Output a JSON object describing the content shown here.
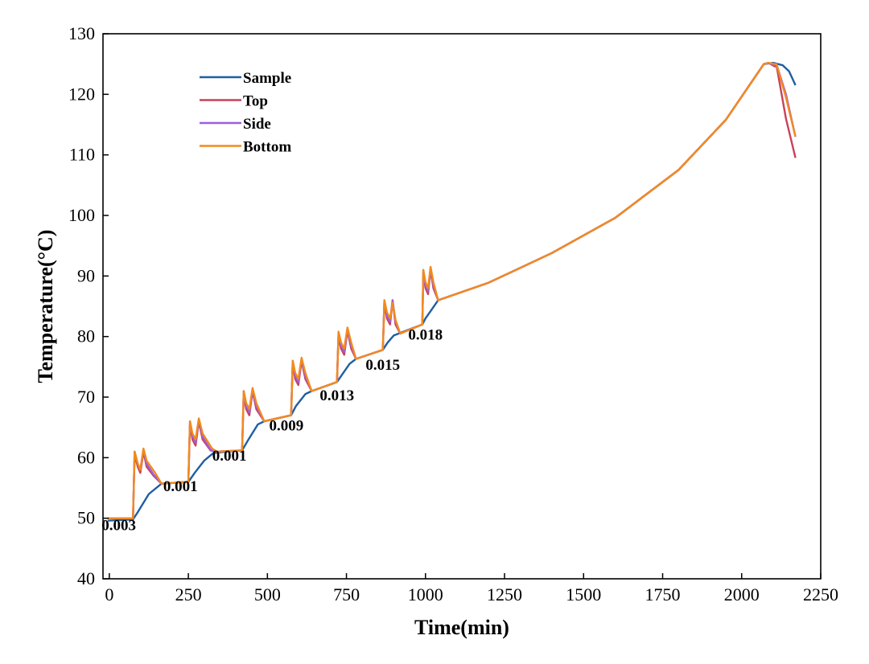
{
  "chart_data": {
    "type": "line",
    "title": "",
    "xlabel": "Time(min)",
    "ylabel": "Temperature(°C)",
    "xlim": [
      -20,
      2250
    ],
    "ylim": [
      40,
      130
    ],
    "x_ticks": [
      0,
      250,
      500,
      750,
      1000,
      1250,
      1500,
      1750,
      2000,
      2250
    ],
    "y_ticks": [
      40,
      50,
      60,
      70,
      80,
      90,
      100,
      110,
      120,
      130
    ],
    "grid": false,
    "legend_position": "top-left",
    "series": [
      {
        "name": "Sample",
        "color": "#1f5fa0",
        "points": [
          [
            -5,
            49.6
          ],
          [
            75,
            49.8
          ],
          [
            90,
            51
          ],
          [
            125,
            54
          ],
          [
            165,
            55.7
          ],
          [
            250,
            56
          ],
          [
            270,
            57.5
          ],
          [
            300,
            59.5
          ],
          [
            330,
            60.8
          ],
          [
            420,
            61.2
          ],
          [
            440,
            63
          ],
          [
            470,
            65.5
          ],
          [
            490,
            66
          ],
          [
            575,
            67
          ],
          [
            590,
            68.5
          ],
          [
            620,
            70.5
          ],
          [
            640,
            71
          ],
          [
            720,
            72.5
          ],
          [
            740,
            74
          ],
          [
            760,
            75.5
          ],
          [
            780,
            76.3
          ],
          [
            865,
            77.8
          ],
          [
            880,
            79
          ],
          [
            900,
            80.2
          ],
          [
            990,
            82
          ],
          [
            1000,
            83
          ],
          [
            1020,
            84.5
          ],
          [
            1040,
            86
          ],
          [
            1200,
            88.9
          ],
          [
            1400,
            93.8
          ],
          [
            1600,
            99.6
          ],
          [
            1800,
            107.5
          ],
          [
            1950,
            115.8
          ],
          [
            2070,
            125
          ],
          [
            2100,
            125.2
          ],
          [
            2130,
            124.8
          ],
          [
            2150,
            123.8
          ],
          [
            2170,
            121.5
          ]
        ]
      },
      {
        "name": "Top",
        "color": "#c9415a",
        "points": [
          [
            -5,
            50
          ],
          [
            75,
            50
          ],
          [
            80,
            60.5
          ],
          [
            90,
            58.5
          ],
          [
            98,
            57.5
          ],
          [
            108,
            61
          ],
          [
            118,
            58.5
          ],
          [
            140,
            57
          ],
          [
            165,
            55.7
          ],
          [
            250,
            56
          ],
          [
            255,
            65.5
          ],
          [
            263,
            63
          ],
          [
            273,
            62
          ],
          [
            283,
            66
          ],
          [
            295,
            63
          ],
          [
            320,
            61.2
          ],
          [
            340,
            61
          ],
          [
            420,
            61.2
          ],
          [
            425,
            70.5
          ],
          [
            433,
            68
          ],
          [
            443,
            67
          ],
          [
            453,
            71
          ],
          [
            465,
            68
          ],
          [
            490,
            66
          ],
          [
            575,
            67
          ],
          [
            580,
            75.5
          ],
          [
            588,
            73
          ],
          [
            598,
            72
          ],
          [
            608,
            76
          ],
          [
            620,
            73
          ],
          [
            640,
            71
          ],
          [
            720,
            72.5
          ],
          [
            725,
            80
          ],
          [
            733,
            78
          ],
          [
            743,
            77
          ],
          [
            753,
            81
          ],
          [
            765,
            78
          ],
          [
            780,
            76.3
          ],
          [
            865,
            77.8
          ],
          [
            870,
            85.5
          ],
          [
            878,
            83
          ],
          [
            888,
            82
          ],
          [
            896,
            86
          ],
          [
            905,
            82
          ],
          [
            920,
            80.5
          ],
          [
            990,
            82
          ],
          [
            993,
            90.5
          ],
          [
            1000,
            88
          ],
          [
            1008,
            87
          ],
          [
            1016,
            91
          ],
          [
            1025,
            88
          ],
          [
            1040,
            86
          ],
          [
            1200,
            88.9
          ],
          [
            1400,
            93.8
          ],
          [
            1600,
            99.6
          ],
          [
            1800,
            107.5
          ],
          [
            1950,
            115.8
          ],
          [
            2070,
            125
          ],
          [
            2085,
            125.2
          ],
          [
            2105,
            124.6
          ],
          [
            2110,
            124.8
          ],
          [
            2140,
            116
          ],
          [
            2170,
            109.5
          ]
        ]
      },
      {
        "name": "Side",
        "color": "#9b5fe0",
        "points": [
          [
            -5,
            50
          ],
          [
            75,
            50
          ],
          [
            80,
            61
          ],
          [
            90,
            59
          ],
          [
            98,
            58
          ],
          [
            108,
            61.3
          ],
          [
            118,
            59
          ],
          [
            140,
            57.2
          ],
          [
            165,
            55.7
          ],
          [
            250,
            56
          ],
          [
            255,
            66
          ],
          [
            263,
            63.5
          ],
          [
            273,
            62.5
          ],
          [
            283,
            66.3
          ],
          [
            295,
            63.5
          ],
          [
            320,
            61.3
          ],
          [
            340,
            61
          ],
          [
            420,
            61.2
          ],
          [
            425,
            71
          ],
          [
            433,
            68.5
          ],
          [
            443,
            67.5
          ],
          [
            453,
            71.3
          ],
          [
            465,
            68.5
          ],
          [
            490,
            66
          ],
          [
            575,
            67
          ],
          [
            580,
            76
          ],
          [
            588,
            73.5
          ],
          [
            598,
            72.5
          ],
          [
            608,
            76.3
          ],
          [
            620,
            73.5
          ],
          [
            640,
            71
          ],
          [
            720,
            72.5
          ],
          [
            725,
            80.5
          ],
          [
            733,
            78.5
          ],
          [
            743,
            77.5
          ],
          [
            753,
            81.3
          ],
          [
            765,
            78.5
          ],
          [
            780,
            76.3
          ],
          [
            865,
            77.8
          ],
          [
            870,
            86
          ],
          [
            878,
            83.5
          ],
          [
            888,
            82.5
          ],
          [
            896,
            86
          ],
          [
            905,
            82.5
          ],
          [
            920,
            80.5
          ],
          [
            990,
            82
          ],
          [
            993,
            91
          ],
          [
            1000,
            88.5
          ],
          [
            1008,
            87.5
          ],
          [
            1016,
            91.3
          ],
          [
            1025,
            88.5
          ],
          [
            1040,
            86
          ],
          [
            1200,
            88.9
          ],
          [
            1400,
            93.8
          ],
          [
            1600,
            99.6
          ],
          [
            1800,
            107.5
          ],
          [
            1950,
            115.8
          ],
          [
            2070,
            125
          ],
          [
            2085,
            125.2
          ],
          [
            2105,
            124.8
          ],
          [
            2110,
            125
          ],
          [
            2140,
            120
          ],
          [
            2170,
            113
          ]
        ]
      },
      {
        "name": "Bottom",
        "color": "#f28a1e",
        "points": [
          [
            -5,
            50
          ],
          [
            75,
            50
          ],
          [
            80,
            61
          ],
          [
            90,
            59
          ],
          [
            98,
            58
          ],
          [
            108,
            61.5
          ],
          [
            118,
            59.5
          ],
          [
            145,
            57.5
          ],
          [
            165,
            55.7
          ],
          [
            250,
            56
          ],
          [
            255,
            66
          ],
          [
            263,
            64
          ],
          [
            273,
            63
          ],
          [
            283,
            66.5
          ],
          [
            295,
            64
          ],
          [
            325,
            61.5
          ],
          [
            340,
            61
          ],
          [
            420,
            61.2
          ],
          [
            425,
            71
          ],
          [
            433,
            69
          ],
          [
            443,
            68
          ],
          [
            453,
            71.5
          ],
          [
            465,
            69
          ],
          [
            490,
            66
          ],
          [
            575,
            67
          ],
          [
            580,
            76
          ],
          [
            588,
            74
          ],
          [
            598,
            73
          ],
          [
            608,
            76.5
          ],
          [
            620,
            74
          ],
          [
            640,
            71
          ],
          [
            720,
            72.5
          ],
          [
            725,
            80.8
          ],
          [
            733,
            79
          ],
          [
            743,
            78
          ],
          [
            753,
            81.5
          ],
          [
            765,
            79
          ],
          [
            780,
            76.3
          ],
          [
            865,
            77.8
          ],
          [
            870,
            86
          ],
          [
            878,
            84
          ],
          [
            888,
            83
          ],
          [
            896,
            85.5
          ],
          [
            905,
            82.8
          ],
          [
            920,
            80.5
          ],
          [
            990,
            82
          ],
          [
            993,
            91
          ],
          [
            1000,
            89
          ],
          [
            1008,
            88
          ],
          [
            1016,
            91.5
          ],
          [
            1025,
            89
          ],
          [
            1040,
            86
          ],
          [
            1200,
            88.9
          ],
          [
            1400,
            93.8
          ],
          [
            1600,
            99.6
          ],
          [
            1800,
            107.5
          ],
          [
            1950,
            115.8
          ],
          [
            2070,
            125
          ],
          [
            2085,
            125.2
          ],
          [
            2105,
            125
          ],
          [
            2110,
            125
          ],
          [
            2140,
            119.5
          ],
          [
            2170,
            113
          ]
        ]
      }
    ],
    "annotations": [
      {
        "text": "0.003",
        "x": 30,
        "y": 48
      },
      {
        "text": "0.001",
        "x": 225,
        "y": 54.5
      },
      {
        "text": "0.001",
        "x": 380,
        "y": 59.5
      },
      {
        "text": "0.009",
        "x": 560,
        "y": 64.5
      },
      {
        "text": "0.013",
        "x": 720,
        "y": 69.5
      },
      {
        "text": "0.015",
        "x": 865,
        "y": 74.5
      },
      {
        "text": "0.018",
        "x": 1000,
        "y": 79.5
      }
    ]
  }
}
